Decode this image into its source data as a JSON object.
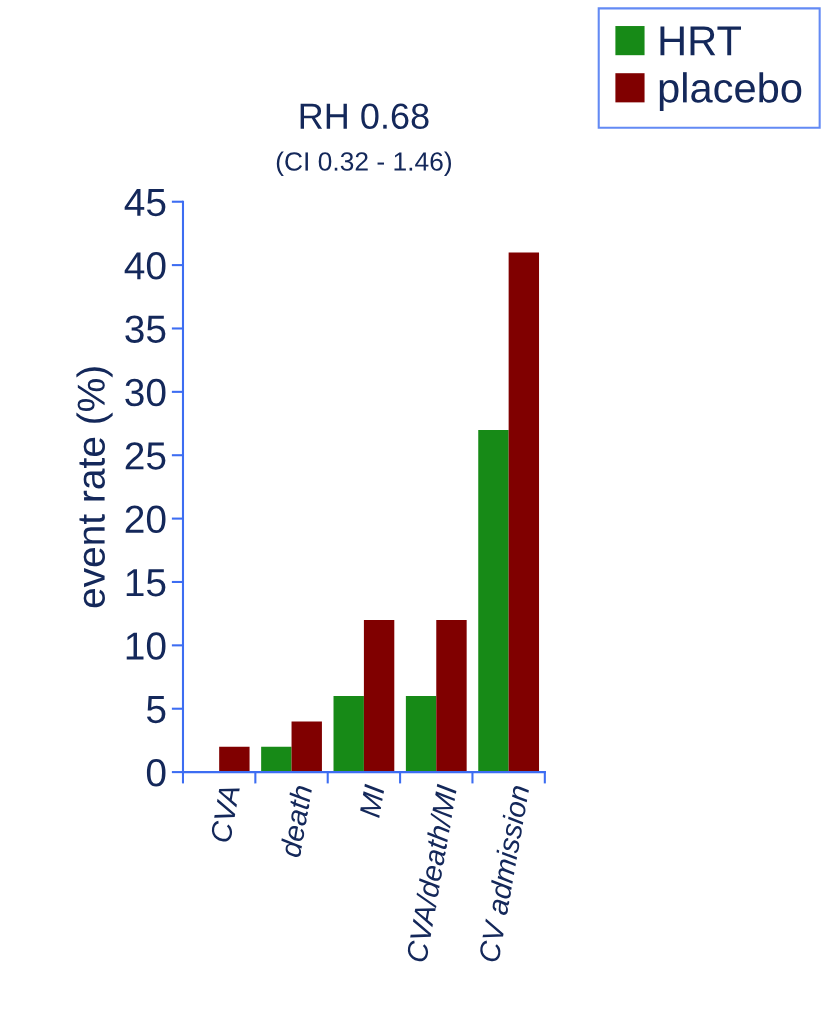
{
  "chart_data": {
    "type": "bar",
    "title": "RH 0.68",
    "subtitle": "(CI 0.32 - 1.46)",
    "ylabel": "event rate (%)",
    "categories": [
      "CVA",
      "death",
      "MI",
      "CVA/death/MI",
      "CV admission"
    ],
    "series": [
      {
        "name": "HRT",
        "color": "#178a17",
        "values": [
          0,
          2,
          6,
          6,
          27
        ]
      },
      {
        "name": "placebo",
        "color": "#800000",
        "values": [
          2,
          4,
          12,
          12,
          41
        ]
      }
    ],
    "ylim": [
      0,
      45
    ],
    "yticks": [
      0,
      5,
      10,
      15,
      20,
      25,
      30,
      35,
      40,
      45
    ],
    "grid": false,
    "legend": "top right"
  }
}
